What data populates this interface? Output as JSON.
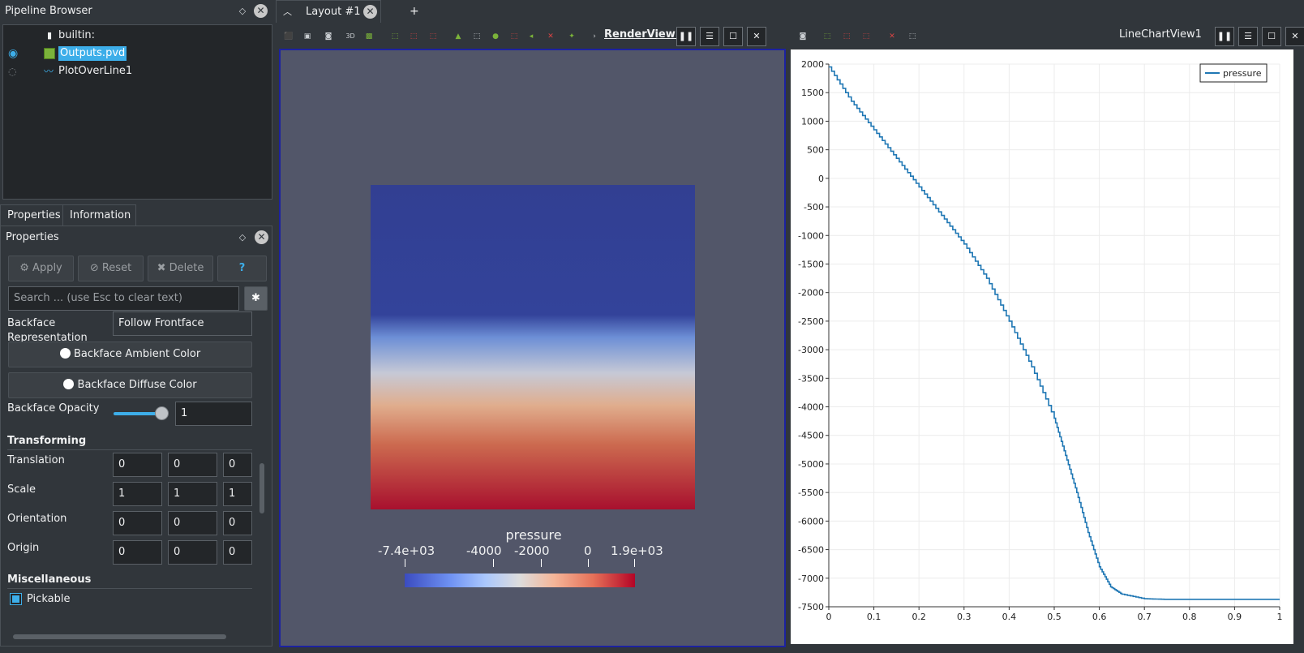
{
  "pipeline": {
    "title": "Pipeline Browser",
    "items": [
      {
        "label": "builtin:"
      },
      {
        "label": "Outputs.pvd"
      },
      {
        "label": "PlotOverLine1"
      }
    ]
  },
  "panel_tabs": [
    "Properties",
    "Information"
  ],
  "properties": {
    "title": "Properties",
    "buttons": {
      "apply": "Apply",
      "reset": "Reset",
      "delete": "Delete",
      "help": "?"
    },
    "search_placeholder": "Search ... (use Esc to clear text)",
    "backface_rep_label_1": "Backface",
    "backface_rep_label_2": "Representation",
    "backface_rep_value": "Follow Frontface",
    "backface_ambient": "Backface Ambient Color",
    "backface_diffuse": "Backface Diffuse Color",
    "backface_opacity_label": "Backface Opacity",
    "backface_opacity_value": "1",
    "backface_opacity_level": 1.0,
    "transforming": "Transforming",
    "translation": {
      "label": "Translation",
      "values": [
        "0",
        "0",
        "0"
      ]
    },
    "scale": {
      "label": "Scale",
      "values": [
        "1",
        "1",
        "1"
      ]
    },
    "orientation": {
      "label": "Orientation",
      "values": [
        "0",
        "0",
        "0"
      ]
    },
    "origin": {
      "label": "Origin",
      "values": [
        "0",
        "0",
        "0"
      ]
    },
    "miscellaneous": "Miscellaneous",
    "pickable": "Pickable"
  },
  "layout": {
    "tab": "Layout #1",
    "add": "+"
  },
  "render_view": {
    "name": "RenderView1",
    "colorbar": {
      "title": "pressure",
      "labels": [
        "-7.4e+03",
        "-4000",
        "-2000",
        "0",
        "1.9e+03"
      ],
      "min": -7400,
      "max": 1900
    }
  },
  "chart_view": {
    "name": "LineChartView1"
  },
  "colors": {
    "accent": "#3daee9",
    "selected_view": "#1c22a0",
    "bg": "#31363b",
    "render_bg": "#525669",
    "line": "#1f77b4"
  },
  "chart_data": {
    "type": "line",
    "title": "",
    "xlabel": "",
    "ylabel": "",
    "xlim": [
      0,
      1
    ],
    "ylim": [
      -7500,
      2000
    ],
    "xticks": [
      "0",
      "0.1",
      "0.2",
      "0.3",
      "0.4",
      "0.5",
      "0.6",
      "0.7",
      "0.8",
      "0.9",
      "1"
    ],
    "yticks": [
      "2000",
      "1500",
      "1000",
      "500",
      "0",
      "-500",
      "-1000",
      "-1500",
      "-2000",
      "-2500",
      "-3000",
      "-3500",
      "-4000",
      "-4500",
      "-5000",
      "-5500",
      "-6000",
      "-6500",
      "-7000",
      "-7500"
    ],
    "grid": true,
    "legend": "top-right",
    "series": [
      {
        "name": "pressure",
        "x": [
          0,
          0.05,
          0.1,
          0.15,
          0.2,
          0.25,
          0.3,
          0.35,
          0.4,
          0.45,
          0.5,
          0.525,
          0.55,
          0.575,
          0.6,
          0.625,
          0.65,
          0.7,
          0.75,
          0.8,
          0.9,
          1.0
        ],
        "y": [
          1950,
          1350,
          850,
          350,
          -150,
          -650,
          -1150,
          -1750,
          -2500,
          -3300,
          -4200,
          -4850,
          -5500,
          -6200,
          -6800,
          -7150,
          -7280,
          -7360,
          -7370,
          -7370,
          -7370,
          -7370
        ]
      }
    ]
  }
}
